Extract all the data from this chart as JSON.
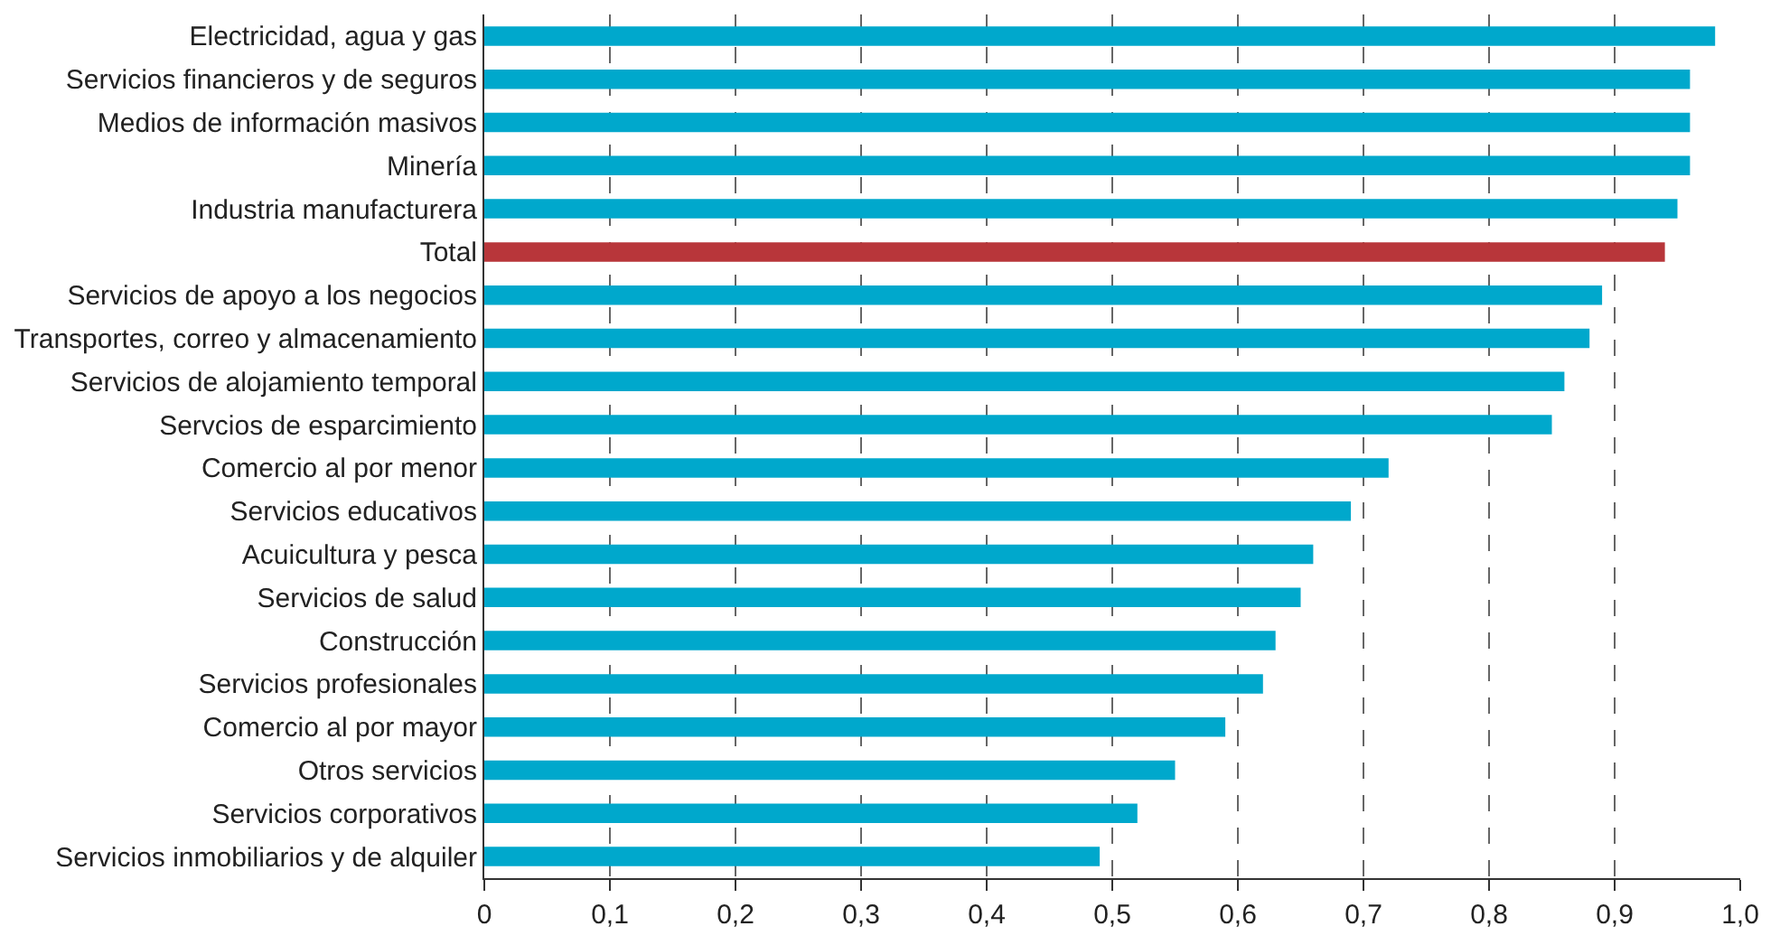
{
  "chart_data": {
    "type": "bar",
    "orientation": "horizontal",
    "categories": [
      "Electricidad, agua y gas",
      "Servicios financieros y de seguros",
      "Medios de información masivos",
      "Minería",
      "Industria manufacturera",
      "Total",
      "Servicios de apoyo a los negocios",
      "Transportes, correo y almacenamiento",
      "Servicios de alojamiento temporal",
      "Servcios de esparcimiento",
      "Comercio al por menor",
      "Servicios educativos",
      "Acuicultura y pesca",
      "Servicios de salud",
      "Construcción",
      "Servicios profesionales",
      "Comercio al por mayor",
      "Otros servicios",
      "Servicios corporativos",
      "Servicios inmobiliarios y de alquiler"
    ],
    "values": [
      0.98,
      0.96,
      0.96,
      0.96,
      0.95,
      0.94,
      0.89,
      0.88,
      0.86,
      0.85,
      0.72,
      0.69,
      0.66,
      0.65,
      0.63,
      0.62,
      0.59,
      0.55,
      0.52,
      0.49
    ],
    "colors": [
      "#00a8cc",
      "#00a8cc",
      "#00a8cc",
      "#00a8cc",
      "#00a8cc",
      "#b8363a",
      "#00a8cc",
      "#00a8cc",
      "#00a8cc",
      "#00a8cc",
      "#00a8cc",
      "#00a8cc",
      "#00a8cc",
      "#00a8cc",
      "#00a8cc",
      "#00a8cc",
      "#00a8cc",
      "#00a8cc",
      "#00a8cc",
      "#00a8cc"
    ],
    "xlim": [
      0,
      1
    ],
    "xticks": [
      0,
      {
        "value": 0.1,
        "label": "0,1"
      },
      {
        "value": 0.2,
        "label": "0,2"
      },
      {
        "value": 0.3,
        "label": "0,3"
      },
      {
        "value": 0.4,
        "label": "0,4"
      },
      {
        "value": 0.5,
        "label": "0,5"
      },
      {
        "value": 0.6,
        "label": "0,6"
      },
      {
        "value": 0.7,
        "label": "0,7"
      },
      {
        "value": 0.8,
        "label": "0,8"
      },
      {
        "value": 0.9,
        "label": "0,9"
      },
      {
        "value": 1,
        "label": "1,0"
      }
    ],
    "grid": "x"
  }
}
